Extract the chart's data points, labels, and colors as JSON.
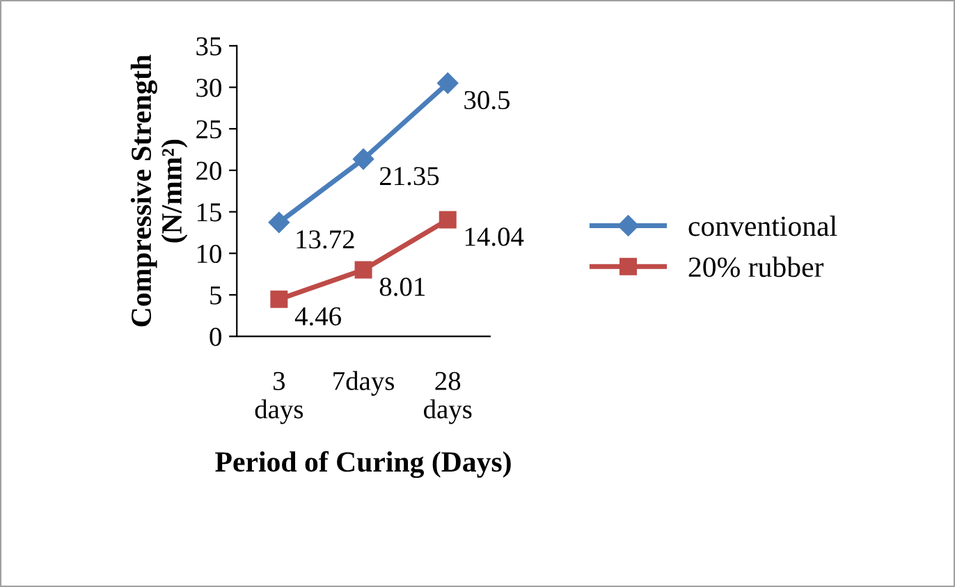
{
  "chart_data": {
    "type": "line",
    "xlabel": "Period of Curing (Days)",
    "ylabel": "Compressive Strength\n(N/mm²)",
    "categories": [
      "3\ndays",
      "7days",
      "28\ndays"
    ],
    "series": [
      {
        "name": "conventional",
        "color": "#4a7ebb",
        "values": [
          13.72,
          21.35,
          30.5
        ],
        "marker": "diamond"
      },
      {
        "name": "20% rubber",
        "color": "#be4b48",
        "values": [
          4.46,
          8.01,
          14.04
        ],
        "marker": "square"
      }
    ],
    "ylim": [
      0,
      35
    ],
    "yticks": [
      0,
      5,
      10,
      15,
      20,
      25,
      30,
      35
    ],
    "grid": false,
    "legend": "right",
    "data_labels": true
  }
}
